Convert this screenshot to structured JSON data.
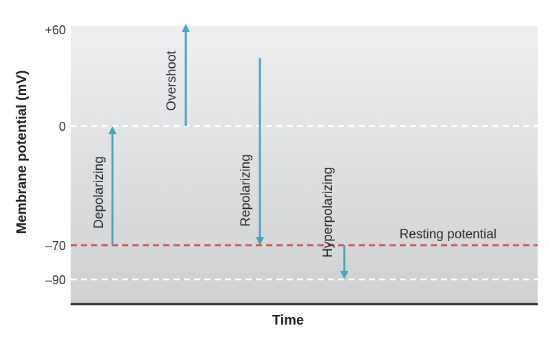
{
  "axes": {
    "y_label": "Membrane potential (mV)",
    "x_label": "Time",
    "ticks": [
      "+60",
      "0",
      "–70",
      "–90"
    ]
  },
  "resting_label": "Resting potential",
  "arrows": [
    {
      "label": "Depolarizing",
      "from_mv": -70,
      "to_mv": 0
    },
    {
      "label": "Overshoot",
      "from_mv": 0,
      "to_mv": 60
    },
    {
      "label": "Repolarizing",
      "from_mv": 40,
      "to_mv": -70
    },
    {
      "label": "Hyperpolarizing",
      "from_mv": -70,
      "to_mv": -90
    }
  ],
  "colors": {
    "arrow": "#4aa7b8",
    "resting_line": "#d05a55",
    "dashed_line": "#ffffff",
    "bg_top": "#eeeff0",
    "bg_bottom": "#cfd0d2",
    "axis": "#222222"
  }
}
